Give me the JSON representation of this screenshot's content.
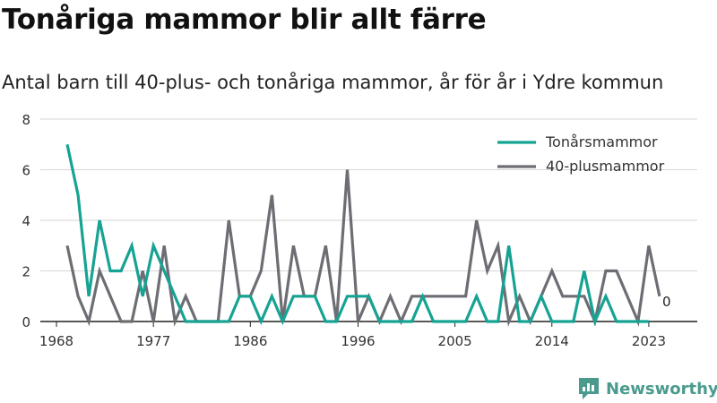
{
  "title": "Tonåriga mammor blir allt färre",
  "subtitle": "Antal barn till 40-plus- och tonåriga mammor, år för år i Ydre kommun",
  "brand": {
    "name": "Newsworthy",
    "color": "#4a9b8e"
  },
  "chart_data": {
    "type": "line",
    "x": [
      1968,
      1969,
      1970,
      1971,
      1972,
      1973,
      1974,
      1975,
      1976,
      1977,
      1978,
      1979,
      1980,
      1981,
      1982,
      1983,
      1984,
      1985,
      1986,
      1987,
      1988,
      1989,
      1990,
      1991,
      1992,
      1993,
      1994,
      1995,
      1996,
      1997,
      1998,
      1999,
      2000,
      2001,
      2002,
      2003,
      2004,
      2005,
      2006,
      2007,
      2008,
      2009,
      2010,
      2011,
      2012,
      2013,
      2014,
      2015,
      2016,
      2017,
      2018,
      2019,
      2020,
      2021,
      2022,
      2023,
      2024
    ],
    "series": [
      {
        "name": "Tonårsmammor",
        "color": "#16a394",
        "values": [
          7,
          5,
          1,
          4,
          2,
          2,
          3,
          1,
          3,
          2,
          1,
          0,
          0,
          0,
          0,
          0,
          1,
          1,
          0,
          1,
          0,
          1,
          1,
          1,
          0,
          0,
          1,
          1,
          1,
          0,
          0,
          0,
          0,
          1,
          0,
          0,
          0,
          0,
          1,
          0,
          0,
          3,
          0,
          0,
          1,
          0,
          0,
          0,
          2,
          0,
          1,
          0,
          0,
          0,
          0,
          null,
          null
        ],
        "x_start_index": 1
      },
      {
        "name": "40-plusmammor",
        "color": "#6d6d74",
        "values": [
          3,
          1,
          0,
          2,
          1,
          0,
          0,
          2,
          0,
          3,
          0,
          1,
          0,
          0,
          0,
          4,
          1,
          1,
          2,
          5,
          0,
          3,
          1,
          1,
          3,
          0,
          6,
          0,
          1,
          0,
          1,
          0,
          1,
          1,
          1,
          1,
          1,
          1,
          4,
          2,
          3,
          0,
          1,
          0,
          1,
          2,
          1,
          1,
          1,
          0,
          2,
          2,
          1,
          0,
          3,
          1,
          0
        ],
        "x_start_index": 1
      }
    ],
    "x_ticks": [
      "1968",
      "1977",
      "1986",
      "1996",
      "2005",
      "2014",
      "2023"
    ],
    "x_tick_values": [
      1968,
      1977,
      1986,
      1996,
      2005,
      2014,
      2023
    ],
    "y_ticks": [
      "0",
      "2",
      "4",
      "6",
      "8"
    ],
    "ylim": [
      0,
      8
    ],
    "end_label": "0",
    "grid": true,
    "legend_position": "top-right"
  }
}
